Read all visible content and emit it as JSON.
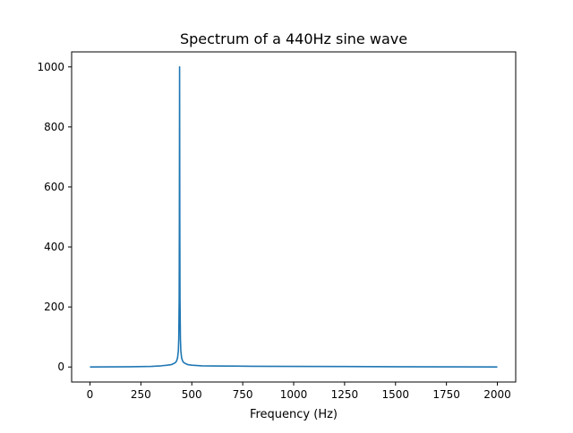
{
  "chart_data": {
    "type": "line",
    "title": "Spectrum of a 440Hz sine wave",
    "xlabel": "Frequency (Hz)",
    "ylabel": "",
    "xlim": [
      -90,
      2090
    ],
    "ylim": [
      -50,
      1050
    ],
    "xticks": [
      0,
      250,
      500,
      750,
      1000,
      1250,
      1500,
      1750,
      2000
    ],
    "yticks": [
      0,
      200,
      400,
      600,
      800,
      1000
    ],
    "grid": false,
    "legend": "none",
    "series": [
      {
        "color": "#1f77b4",
        "x": [
          0,
          100,
          200,
          300,
          350,
          380,
          400,
          410,
          420,
          425,
          430,
          434,
          436,
          438,
          439,
          440,
          441,
          442,
          444,
          446,
          450,
          455,
          460,
          470,
          480,
          500,
          550,
          600,
          700,
          800,
          1000,
          1250,
          1500,
          1750,
          2000
        ],
        "y": [
          0,
          0.5,
          1,
          2,
          4,
          6,
          8,
          11,
          15,
          20,
          30,
          55,
          95,
          230,
          500,
          1000,
          500,
          230,
          95,
          55,
          30,
          20,
          15,
          11,
          8,
          6,
          4,
          3.5,
          3,
          2.5,
          2,
          1.5,
          1,
          0.5,
          0
        ]
      }
    ]
  }
}
